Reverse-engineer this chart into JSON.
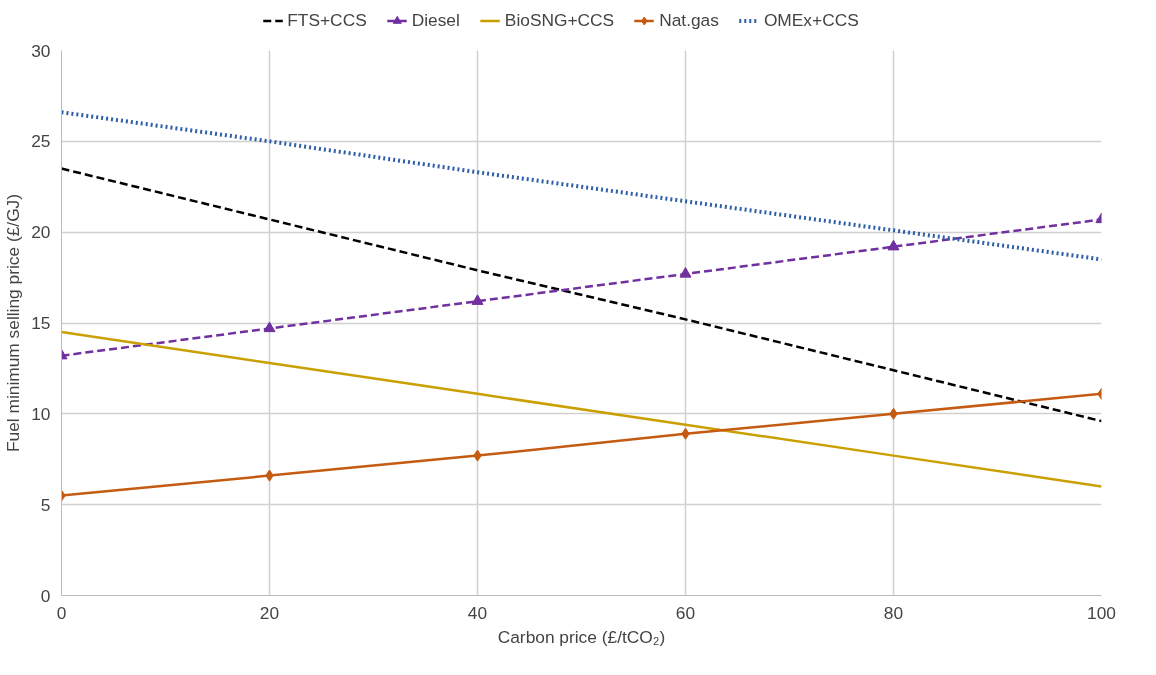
{
  "chart_data": {
    "type": "line",
    "xlabel": "Carbon price (£/tCO₂)",
    "ylabel": "Fuel minimum selling price (£/GJ)",
    "x": [
      0,
      20,
      40,
      60,
      80,
      100
    ],
    "xlim": [
      0,
      100
    ],
    "xticks": [
      0,
      20,
      40,
      60,
      80,
      100
    ],
    "ylim": [
      0,
      30
    ],
    "yticks": [
      0,
      5,
      10,
      15,
      20,
      25,
      30
    ],
    "grid": true,
    "legend": "top",
    "series": [
      {
        "name": "FTS+CCS",
        "color": "#000000",
        "line_style": "dashed",
        "marker": "none",
        "values": [
          23.5,
          20.7,
          17.9,
          15.2,
          12.4,
          9.6
        ]
      },
      {
        "name": "Diesel",
        "color": "#7030a0",
        "line_style": "dashed",
        "marker": "triangle",
        "values": [
          13.2,
          14.7,
          16.2,
          17.7,
          19.2,
          20.7
        ]
      },
      {
        "name": "BioSNG+CCS",
        "color": "#c9a000",
        "line_style": "solid",
        "marker": "none",
        "values": [
          14.5,
          12.8,
          11.1,
          9.4,
          7.7,
          6.0
        ]
      },
      {
        "name": "Nat.gas",
        "color": "#c55a11",
        "line_style": "solid",
        "marker": "diamond",
        "values": [
          5.5,
          6.6,
          7.7,
          8.9,
          10.0,
          11.1
        ]
      },
      {
        "name": "OMEx+CCS",
        "color": "#2e5ea8",
        "line_style": "dotted",
        "marker": "none",
        "values": [
          26.6,
          25.0,
          23.3,
          21.7,
          20.1,
          18.5
        ]
      }
    ]
  }
}
